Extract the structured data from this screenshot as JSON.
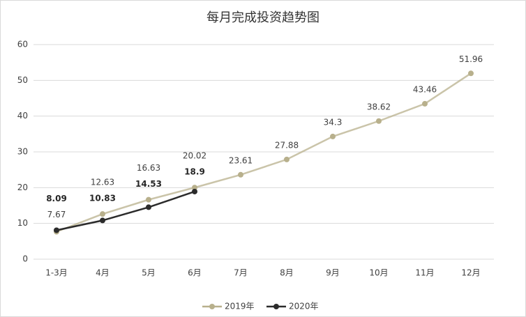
{
  "chart_data": {
    "type": "line",
    "title": "每月完成投资趋势图",
    "categories": [
      "1-3月",
      "4月",
      "5月",
      "6月",
      "7月",
      "8月",
      "9月",
      "10月",
      "11月",
      "12月"
    ],
    "series": [
      {
        "name": "2019年",
        "color": "#b8b08c",
        "values": [
          7.67,
          12.63,
          16.63,
          20.02,
          23.61,
          27.88,
          34.3,
          38.62,
          43.46,
          51.96
        ]
      },
      {
        "name": "2020年",
        "color": "#2b2b2b",
        "values": [
          8.09,
          10.83,
          14.53,
          18.9,
          null,
          null,
          null,
          null,
          null,
          null
        ]
      }
    ],
    "ylim": [
      0,
      60
    ],
    "yticks": [
      0,
      10,
      20,
      30,
      40,
      50,
      60
    ],
    "grid": true,
    "legend": "bottom"
  }
}
